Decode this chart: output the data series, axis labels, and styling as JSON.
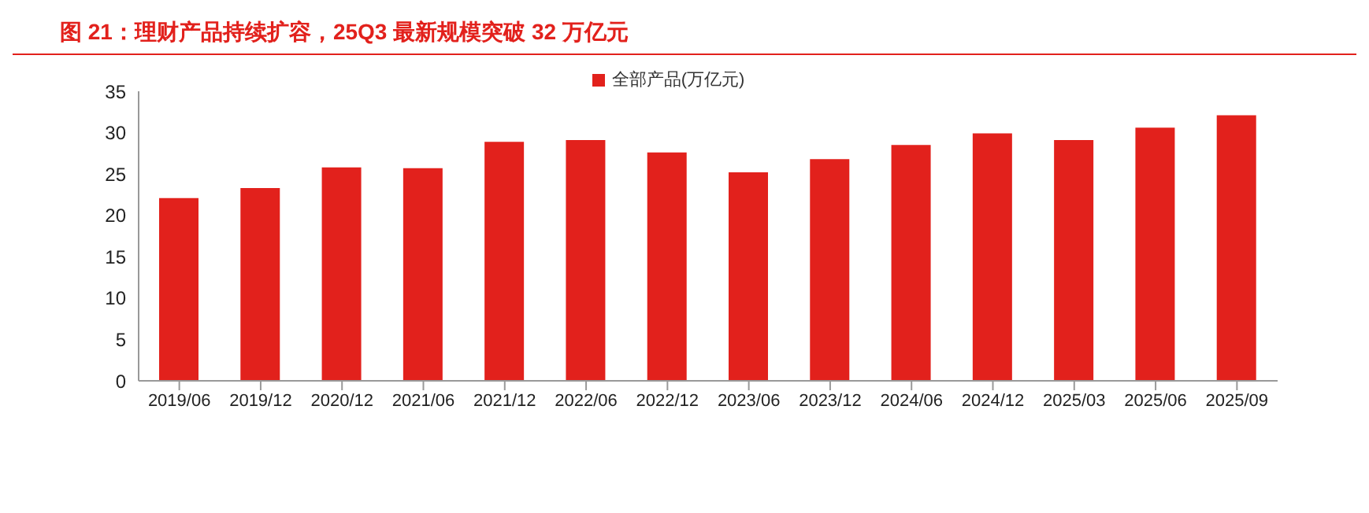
{
  "chart_data": {
    "type": "bar",
    "title": "图 21：理财产品持续扩容，25Q3 最新规模突破 32 万亿元",
    "categories": [
      "2019/06",
      "2019/12",
      "2020/12",
      "2021/06",
      "2021/12",
      "2022/06",
      "2022/12",
      "2023/06",
      "2023/12",
      "2024/06",
      "2024/12",
      "2025/03",
      "2025/06",
      "2025/09"
    ],
    "series": [
      {
        "name": "全部产品(万亿元)",
        "color": "#e2211c",
        "values": [
          22.1,
          23.3,
          25.8,
          25.7,
          28.9,
          29.1,
          27.6,
          25.2,
          26.8,
          28.5,
          29.9,
          29.1,
          30.6,
          32.1
        ]
      }
    ],
    "ylim": [
      0,
      35
    ],
    "yticks": [
      0,
      5,
      10,
      15,
      20,
      25,
      30,
      35
    ],
    "grid": false,
    "legend": "top"
  }
}
